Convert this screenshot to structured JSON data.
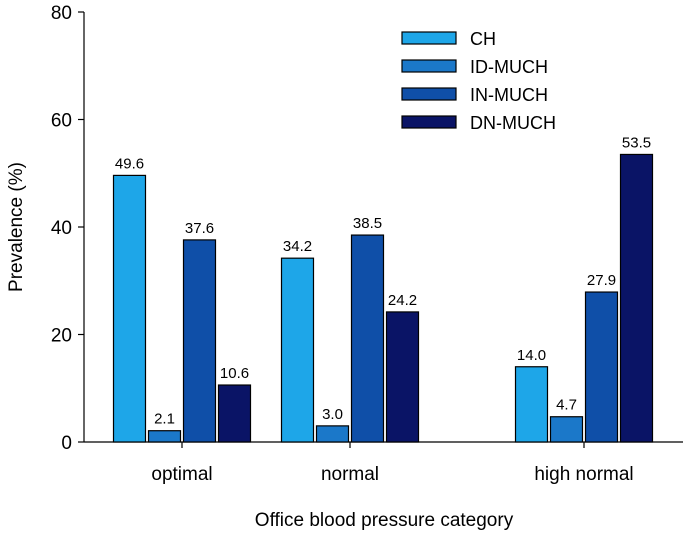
{
  "chart_data": {
    "type": "bar",
    "title": "",
    "xlabel": "Office blood pressure category",
    "ylabel": "Prevalence (%)",
    "ylim": [
      0,
      80
    ],
    "yticks": [
      0,
      20,
      40,
      60,
      80
    ],
    "grid": false,
    "legend_position": "top-right",
    "categories": [
      "optimal",
      "normal",
      "high normal"
    ],
    "series": [
      {
        "name": "CH",
        "color": "#1ea6e8",
        "values": [
          49.6,
          34.2,
          14.0
        ],
        "labels": [
          "49.6",
          "34.2",
          "14.0"
        ]
      },
      {
        "name": "ID-MUCH",
        "color": "#1b78c9",
        "values": [
          2.1,
          3.0,
          4.7
        ],
        "labels": [
          "2.1",
          "3.0",
          "4.7"
        ]
      },
      {
        "name": "IN-MUCH",
        "color": "#0f4fa8",
        "values": [
          37.6,
          38.5,
          27.9
        ],
        "labels": [
          "37.6",
          "38.5",
          "27.9"
        ]
      },
      {
        "name": "DN-MUCH",
        "color": "#0a1466",
        "values": [
          10.6,
          24.2,
          53.5
        ],
        "labels": [
          "10.6",
          "24.2",
          "53.5"
        ]
      }
    ]
  }
}
